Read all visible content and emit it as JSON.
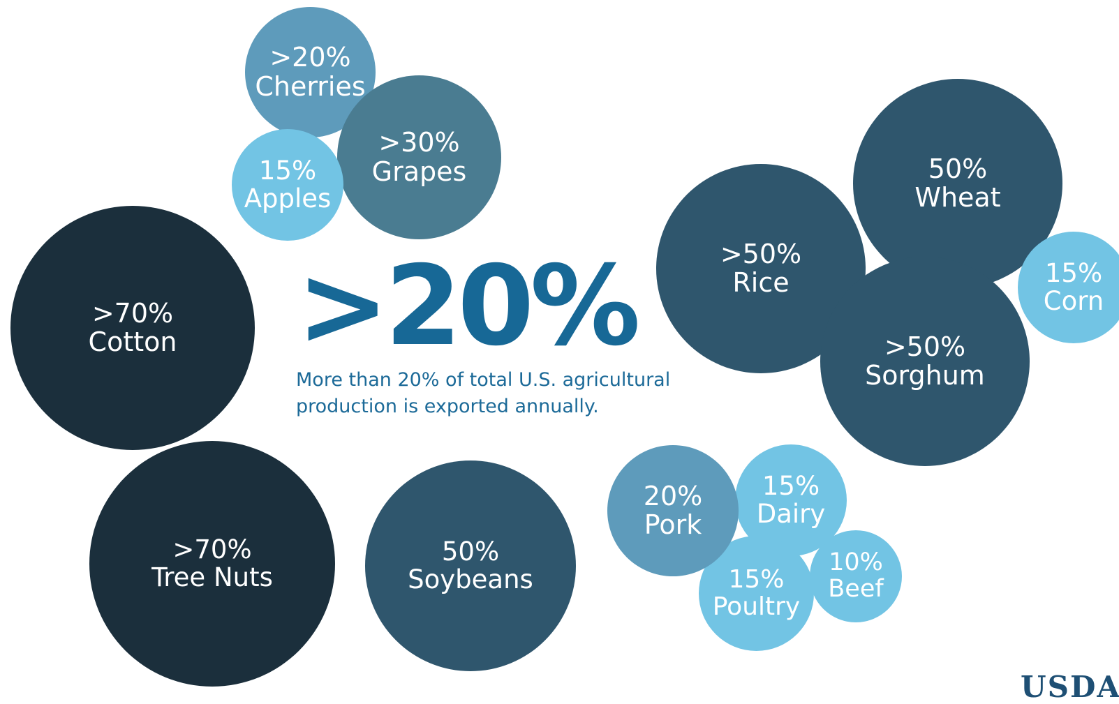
{
  "headline": {
    "value": ">20%",
    "caption": "More than 20% of total U.S. agricultural production is exported annually."
  },
  "products": [
    {
      "pct": ">20%",
      "name": "Cherries",
      "tone": "steel"
    },
    {
      "pct": "15%",
      "name": "Apples",
      "tone": "light"
    },
    {
      "pct": ">30%",
      "name": "Grapes",
      "tone": "slate"
    },
    {
      "pct": ">70%",
      "name": "Cotton",
      "tone": "dark"
    },
    {
      "pct": ">70%",
      "name": "Tree Nuts",
      "tone": "dark"
    },
    {
      "pct": "50%",
      "name": "Soybeans",
      "tone": "mid"
    },
    {
      "pct": ">50%",
      "name": "Rice",
      "tone": "mid"
    },
    {
      "pct": "50%",
      "name": "Wheat",
      "tone": "mid"
    },
    {
      "pct": ">50%",
      "name": "Sorghum",
      "tone": "mid"
    },
    {
      "pct": "15%",
      "name": "Corn",
      "tone": "light"
    },
    {
      "pct": "20%",
      "name": "Pork",
      "tone": "steel"
    },
    {
      "pct": "15%",
      "name": "Dairy",
      "tone": "light"
    },
    {
      "pct": "15%",
      "name": "Poultry",
      "tone": "light"
    },
    {
      "pct": "10%",
      "name": "Beef",
      "tone": "light"
    }
  ],
  "colors": {
    "dark": "#1b2f3c",
    "mid": "#2f566d",
    "slate": "#4a7c91",
    "steel": "#5e9bbb",
    "light": "#72c4e4",
    "headline": "#176896"
  },
  "logo": "USDA"
}
